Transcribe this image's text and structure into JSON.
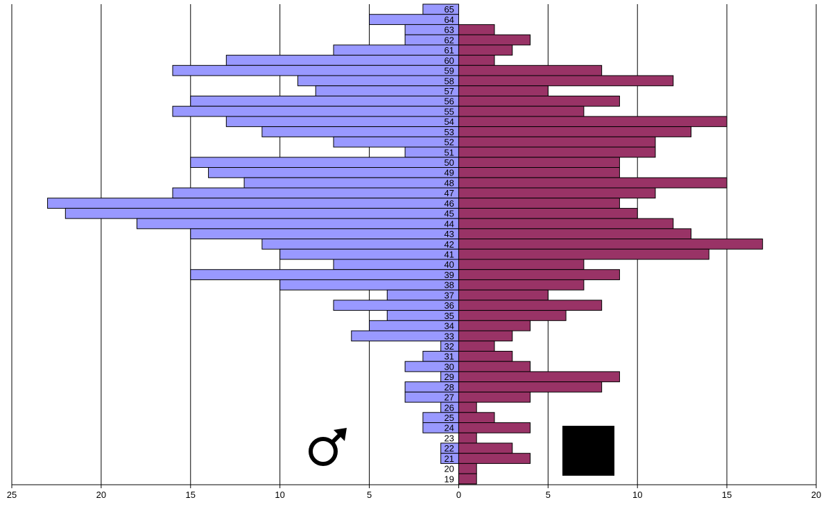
{
  "chart_data": {
    "type": "bar",
    "orientation": "horizontal-pyramid",
    "title": "",
    "xlabel": "",
    "ylabel": "",
    "xlim": [
      -25,
      20
    ],
    "x_ticks": [
      "25",
      "20",
      "15",
      "10",
      "5",
      "0",
      "5",
      "10",
      "15",
      "20"
    ],
    "grid": "vertical",
    "categories": [
      "65",
      "64",
      "63",
      "62",
      "61",
      "60",
      "59",
      "58",
      "57",
      "56",
      "55",
      "54",
      "53",
      "52",
      "51",
      "50",
      "49",
      "48",
      "47",
      "46",
      "45",
      "44",
      "43",
      "42",
      "41",
      "40",
      "39",
      "38",
      "37",
      "36",
      "35",
      "34",
      "33",
      "32",
      "31",
      "30",
      "29",
      "28",
      "27",
      "26",
      "25",
      "24",
      "23",
      "22",
      "21",
      "20",
      "19"
    ],
    "series": [
      {
        "color": "#9999ff",
        "side": "left",
        "values": [
          2,
          5,
          3,
          3,
          7,
          13,
          16,
          9,
          8,
          15,
          16,
          13,
          11,
          7,
          3,
          15,
          14,
          12,
          16,
          23,
          22,
          18,
          15,
          11,
          10,
          7,
          15,
          10,
          4,
          7,
          4,
          5,
          6,
          1,
          2,
          3,
          1,
          3,
          3,
          1,
          2,
          2,
          0,
          1,
          1,
          0,
          0
        ]
      },
      {
        "color": "#993366",
        "side": "right",
        "values": [
          0,
          0,
          2,
          4,
          3,
          2,
          8,
          12,
          5,
          9,
          7,
          15,
          13,
          11,
          11,
          9,
          9,
          15,
          11,
          9,
          10,
          12,
          13,
          17,
          14,
          7,
          9,
          7,
          5,
          8,
          6,
          4,
          3,
          2,
          3,
          4,
          9,
          8,
          4,
          1,
          2,
          4,
          1,
          3,
          4,
          1,
          1
        ]
      }
    ],
    "legend": {
      "male_icon": "male-symbol-icon",
      "female_icon": "black-box-icon"
    }
  }
}
